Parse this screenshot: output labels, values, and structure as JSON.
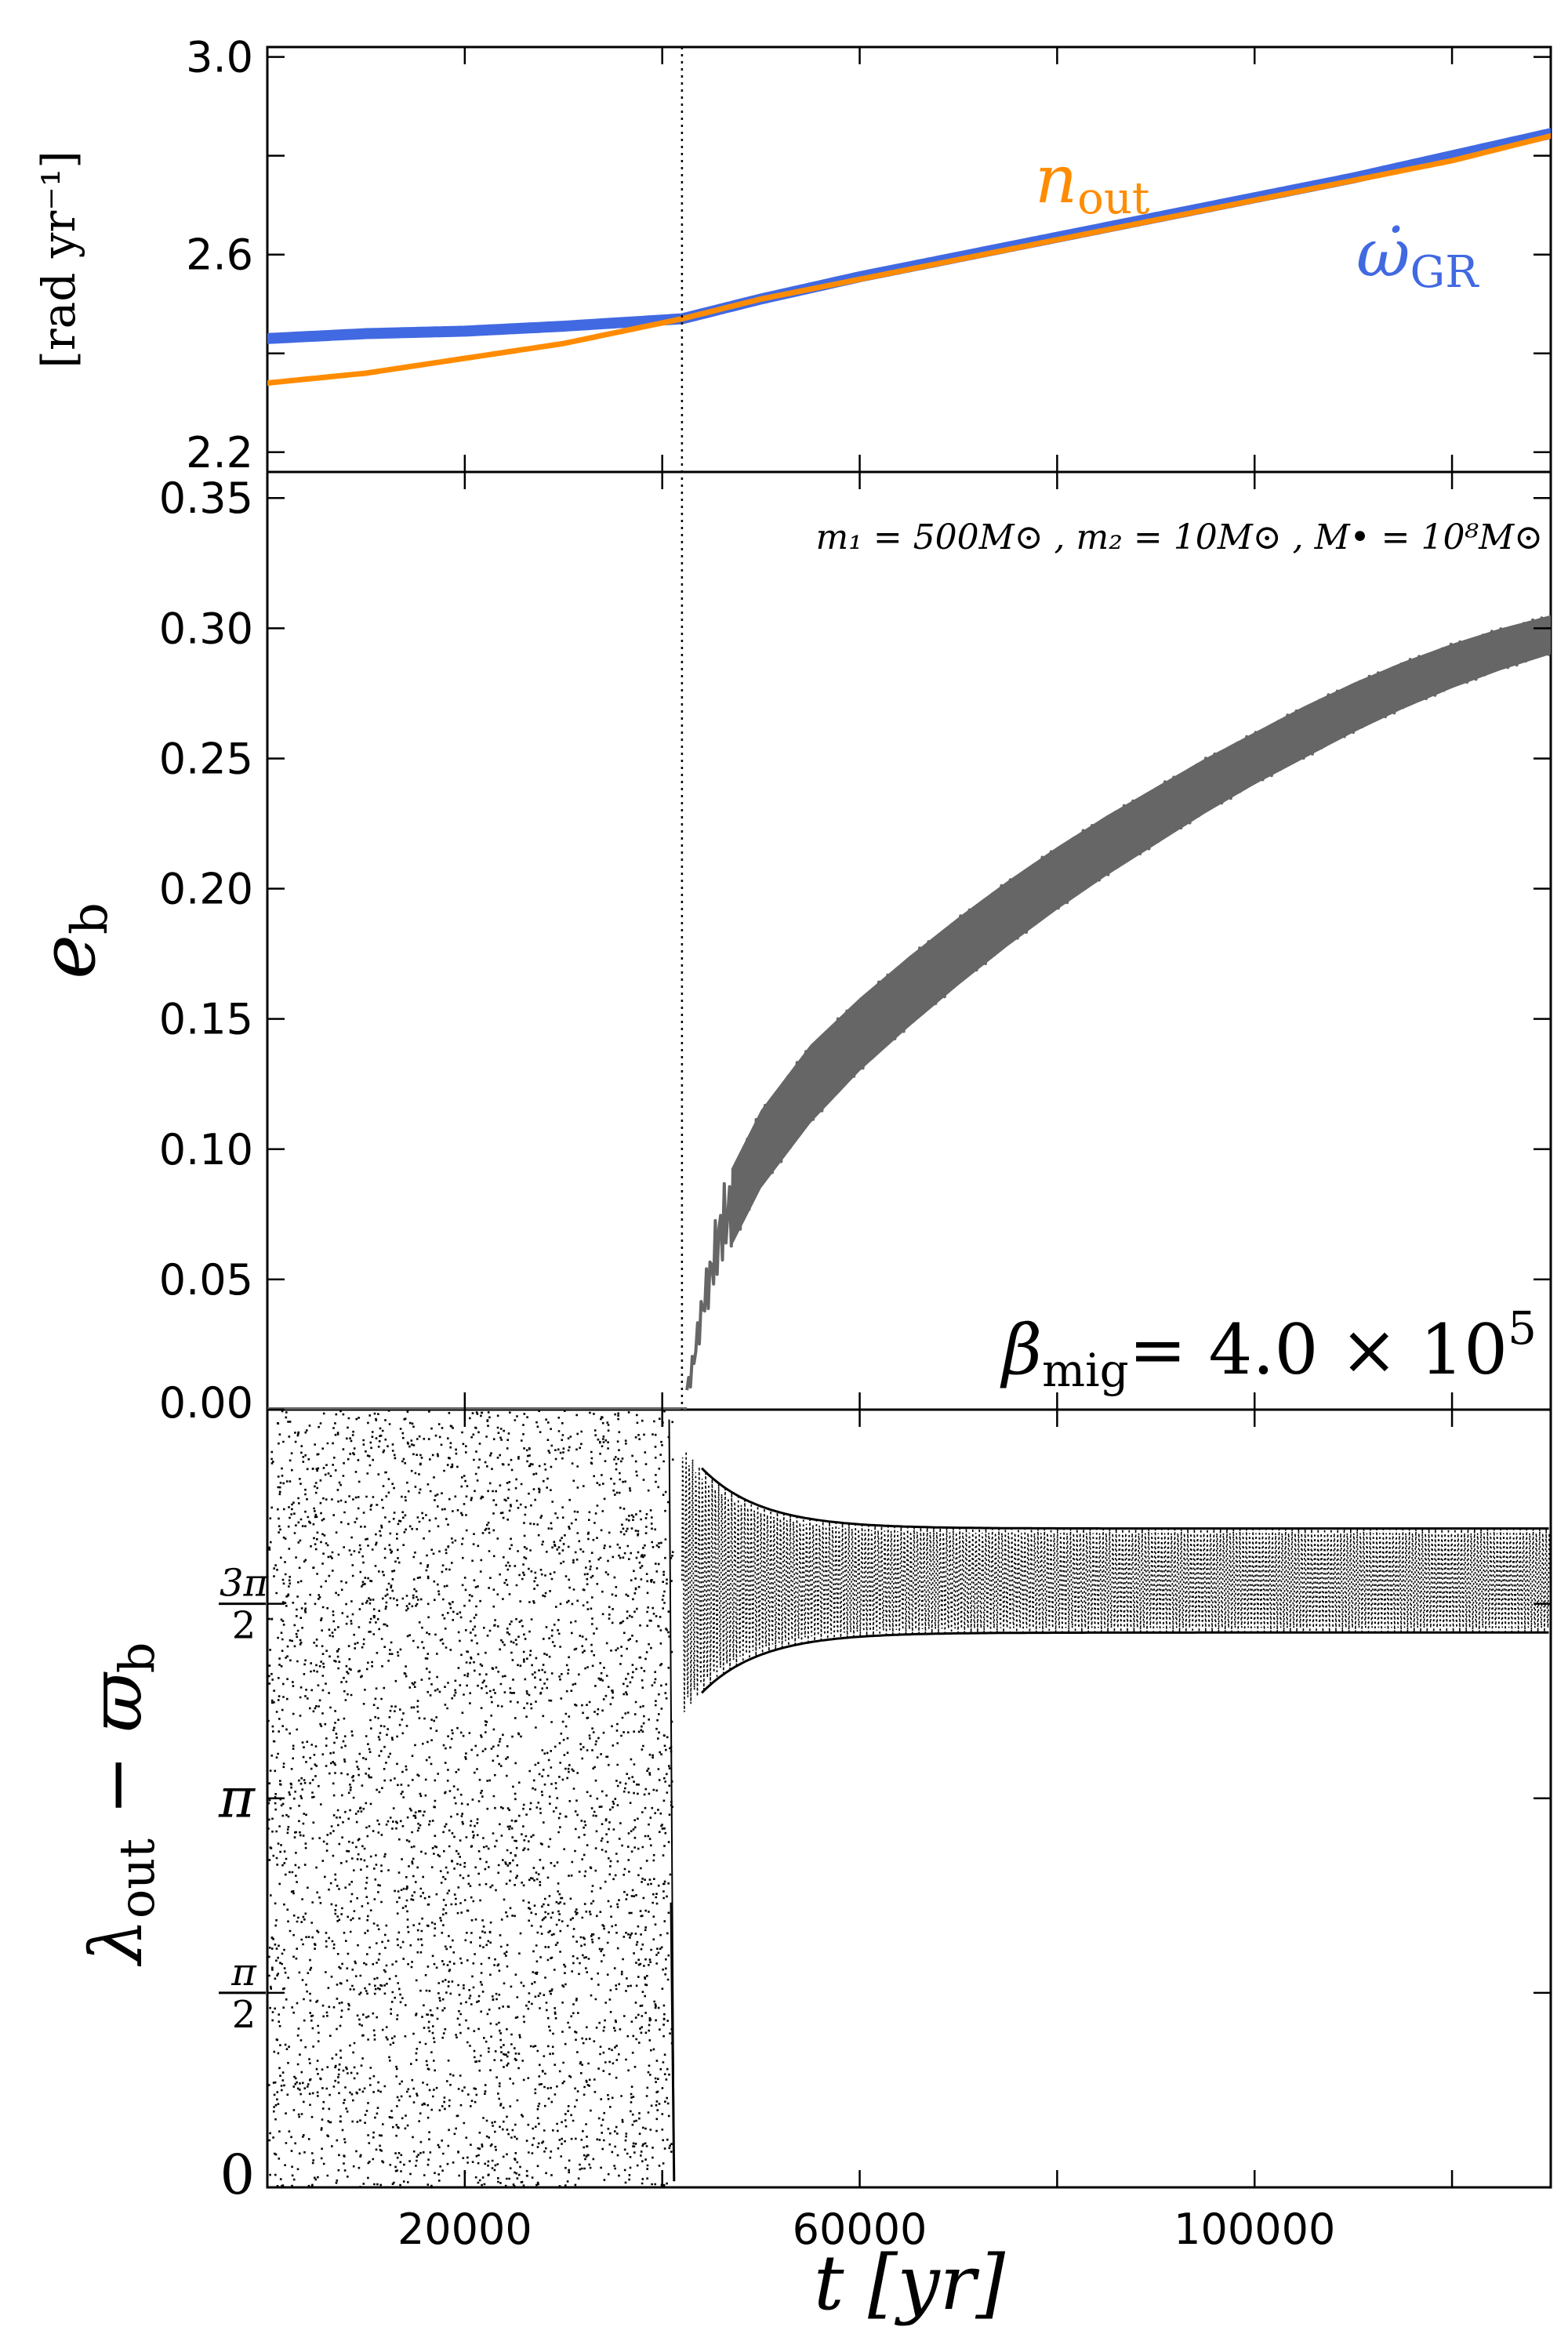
{
  "figure": {
    "xlabel": "t [yr]",
    "xticks": [
      20000,
      60000,
      100000
    ],
    "xlim": [
      0,
      130000
    ],
    "vline_x": 42000,
    "vline_style": "dotted"
  },
  "chart_data": [
    {
      "type": "line",
      "panel": "top",
      "ylabel": "[rad yr⁻¹]",
      "yticks": [
        "2.2",
        "2.6",
        "3.0"
      ],
      "ylim": [
        2.16,
        3.02
      ],
      "x": [
        0,
        10000,
        20000,
        30000,
        42000,
        50000,
        60000,
        70000,
        80000,
        90000,
        100000,
        110000,
        120000,
        130000
      ],
      "series": [
        {
          "name": "n_out",
          "label_text": "n",
          "label_sub": "out",
          "color": "#ff8c00",
          "values": [
            2.34,
            2.36,
            2.39,
            2.42,
            2.47,
            2.51,
            2.55,
            2.59,
            2.63,
            2.67,
            2.71,
            2.75,
            2.79,
            2.84
          ]
        },
        {
          "name": "omega_dot_GR",
          "label_text": "ω̇",
          "label_sub": "GR",
          "color": "#4169e1",
          "values": [
            2.43,
            2.44,
            2.445,
            2.455,
            2.47,
            2.51,
            2.555,
            2.595,
            2.635,
            2.675,
            2.715,
            2.755,
            2.8,
            2.845
          ]
        }
      ]
    },
    {
      "type": "area",
      "panel": "middle",
      "ylabel": "e_b",
      "ylabel_text": "e",
      "ylabel_sub": "b",
      "yticks": [
        "0.00",
        "0.05",
        "0.10",
        "0.15",
        "0.20",
        "0.25",
        "0.30",
        "0.35"
      ],
      "ylim": [
        0,
        0.36
      ],
      "color": "#666666",
      "x": [
        0,
        40000,
        42000,
        43000,
        44000,
        46000,
        48000,
        50000,
        55000,
        60000,
        65000,
        70000,
        75000,
        80000,
        85000,
        90000,
        95000,
        100000,
        105000,
        110000,
        115000,
        120000,
        125000,
        130000
      ],
      "lower": [
        0,
        0,
        0,
        0.01,
        0.03,
        0.055,
        0.07,
        0.085,
        0.11,
        0.13,
        0.147,
        0.163,
        0.178,
        0.192,
        0.205,
        0.217,
        0.229,
        0.24,
        0.25,
        0.26,
        0.269,
        0.277,
        0.284,
        0.29
      ],
      "upper": [
        0,
        0,
        0,
        0.02,
        0.045,
        0.085,
        0.1,
        0.115,
        0.14,
        0.158,
        0.174,
        0.189,
        0.203,
        0.216,
        0.228,
        0.239,
        0.25,
        0.26,
        0.27,
        0.279,
        0.287,
        0.294,
        0.3,
        0.305
      ],
      "annotation_masses": "m₁ = 500M⊙ , m₂ = 10M⊙ , M• = 10⁸M⊙",
      "annotation_beta": "βmig = 4.0 × 10⁵",
      "beta_sym": "β",
      "beta_sub": "mig",
      "beta_rhs": "= 4.0 × 10",
      "beta_exp": "5"
    },
    {
      "type": "scatter",
      "panel": "bottom",
      "ylabel": "λout − ϖb",
      "ylabel_lambda": "λ",
      "ylabel_lsub": "out",
      "ylabel_minus": " − ",
      "ylabel_varpi": "ϖ",
      "ylabel_vsub": "b",
      "yticks": [
        "0",
        "π/2",
        "π",
        "3π/2"
      ],
      "ylim": [
        0,
        6.28
      ],
      "color": "#000000",
      "regions": [
        {
          "x_range": [
            0,
            41000
          ],
          "behavior": "circulating"
        },
        {
          "x_range": [
            42000,
            130000
          ],
          "behavior": "librating",
          "center": 4.9,
          "amplitude_end": 0.42
        }
      ]
    }
  ]
}
